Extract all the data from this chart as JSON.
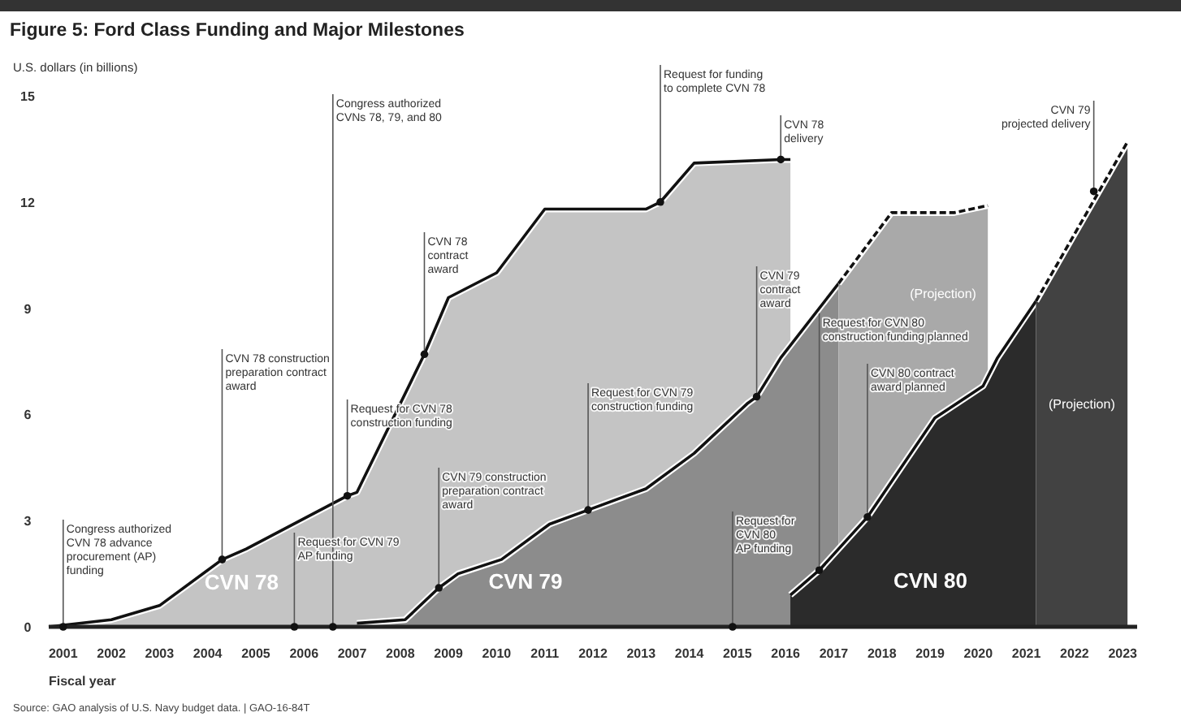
{
  "chart_data": {
    "type": "area",
    "title": "Figure 5: Ford Class Funding and Major Milestones",
    "ylabel": "U.S. dollars (in billions)",
    "xlabel": "Fiscal year",
    "xlim": [
      2000.7,
      2023.3
    ],
    "xticks": [
      2001,
      2002,
      2003,
      2004,
      2005,
      2006,
      2007,
      2008,
      2009,
      2010,
      2011,
      2012,
      2013,
      2014,
      2015,
      2016,
      2017,
      2018,
      2019,
      2020,
      2021,
      2022,
      2023
    ],
    "ylim": [
      0,
      15
    ],
    "yticks": [
      0,
      3,
      6,
      9,
      12,
      15
    ],
    "grid": false,
    "legend": false,
    "marker": "none",
    "series": [
      {
        "name": "CVN 78",
        "color": "#c4c4c4",
        "line_style": "solid",
        "x": [
          2000.7,
          2002.0,
          2003.0,
          2004.3,
          2004.8,
          2006.9,
          2007.1,
          2008.5,
          2009.0,
          2010.0,
          2011.0,
          2013.1,
          2013.4,
          2014.1,
          2015.9,
          2016.1
        ],
        "values": [
          0,
          0.2,
          0.6,
          1.9,
          2.2,
          3.7,
          3.8,
          7.7,
          9.3,
          10.0,
          11.8,
          11.8,
          12.0,
          13.1,
          13.2,
          13.2
        ]
      },
      {
        "name": "CVN 79",
        "color": "#8c8c8c",
        "line_style": "solid",
        "x": [
          2007.1,
          2008.1,
          2008.8,
          2009.2,
          2010.1,
          2011.1,
          2011.9,
          2013.1,
          2014.1,
          2015.2,
          2015.4,
          2015.9,
          2017.1
        ],
        "values": [
          0.1,
          0.2,
          1.1,
          1.5,
          1.9,
          2.9,
          3.3,
          3.9,
          4.9,
          6.3,
          6.5,
          7.6,
          9.7
        ]
      },
      {
        "name": "(Projection)",
        "color": "#a9a9a9",
        "line_style": "dashed",
        "x": [
          2017.1,
          2018.2,
          2019.5,
          2020.2
        ],
        "values": [
          9.7,
          11.7,
          11.7,
          11.9
        ]
      },
      {
        "name": "CVN 80",
        "color": "#2b2b2b",
        "line_style": "solid",
        "x": [
          2016.1,
          2016.7,
          2017.7,
          2019.1,
          2020.1,
          2020.4,
          2021.2
        ],
        "values": [
          0.9,
          1.6,
          3.1,
          5.9,
          6.8,
          7.6,
          9.2
        ]
      },
      {
        "name": "(Projection)",
        "color": "#424242",
        "line_style": "dashed",
        "x": [
          2021.2,
          2023.1
        ],
        "values": [
          9.2,
          13.7
        ]
      }
    ],
    "annotations": [
      {
        "text": "Congress authorized\nCVN 78 advance\nprocurement (AP)\nfunding",
        "x": 2001,
        "y": 0
      },
      {
        "text": "CVN 78 construction\npreparation contract\naward",
        "x": 2004.3,
        "y": 1.9
      },
      {
        "text": "Congress authorized\nCVNs 78, 79, and 80",
        "x": 2006.6,
        "y": 0
      },
      {
        "text": "Request for CVN 79\nAP funding",
        "x": 2005.8,
        "y": 0
      },
      {
        "text": "Request for CVN 78\nconstruction funding",
        "x": 2006.9,
        "y": 3.7
      },
      {
        "text": "CVN 78\ncontract\naward",
        "x": 2008.5,
        "y": 7.7
      },
      {
        "text": "CVN 79 construction\npreparation contract\naward",
        "x": 2008.8,
        "y": 1.1
      },
      {
        "text": "Request for CVN 79\nconstruction funding",
        "x": 2011.9,
        "y": 3.3
      },
      {
        "text": "Request for funding\nto complete CVN 78",
        "x": 2013.4,
        "y": 12.0
      },
      {
        "text": "CVN 78\ndelivery",
        "x": 2015.9,
        "y": 13.2
      },
      {
        "text": "CVN 79\ncontract\naward",
        "x": 2015.4,
        "y": 6.5
      },
      {
        "text": "Request for\nCVN 80\nAP funding",
        "x": 2014.9,
        "y": 0
      },
      {
        "text": "Request for CVN 80\nconstruction funding planned",
        "x": 2016.7,
        "y": 1.6
      },
      {
        "text": "CVN 80 contract\naward planned",
        "x": 2017.7,
        "y": 3.1
      },
      {
        "text": "CVN 79\nprojected delivery",
        "x": 2022.4,
        "y": 12.3
      },
      "Source: GAO analysis of U.S. Navy budget data. | GAO-16-84T"
    ]
  }
}
